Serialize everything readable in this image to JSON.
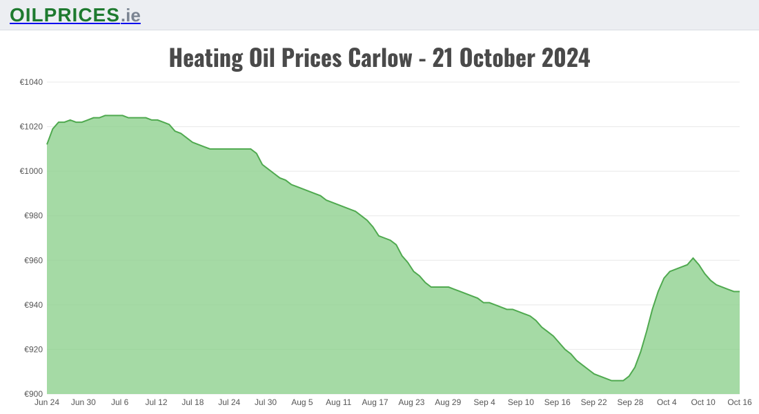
{
  "logo": {
    "main": "OILPRICES",
    "suffix": ".ie"
  },
  "title": "Heating Oil Prices Carlow - 21 October 2024",
  "title_fontsize": 34,
  "chart": {
    "type": "area",
    "background_color": "#ffffff",
    "grid_color": "#e8e8e8",
    "area_fill": "#8cd08c",
    "area_fill_opacity": 0.78,
    "line_color": "#4fa94f",
    "line_width": 2,
    "ylim": [
      900,
      1040
    ],
    "ytick_step": 20,
    "y_prefix": "€",
    "y_ticks": [
      900,
      920,
      940,
      960,
      980,
      1000,
      1020,
      1040
    ],
    "x_labels": [
      "Jun 24",
      "Jun 30",
      "Jul 6",
      "Jul 12",
      "Jul 18",
      "Jul 24",
      "Jul 30",
      "Aug 5",
      "Aug 11",
      "Aug 17",
      "Aug 23",
      "Aug 29",
      "Sep 4",
      "Sep 10",
      "Sep 16",
      "Sep 22",
      "Sep 28",
      "Oct 4",
      "Oct 10",
      "Oct 16"
    ],
    "values": [
      1012,
      1019,
      1022,
      1022,
      1023,
      1022,
      1022,
      1023,
      1024,
      1024,
      1025,
      1025,
      1025,
      1025,
      1024,
      1024,
      1024,
      1024,
      1023,
      1023,
      1022,
      1021,
      1018,
      1017,
      1015,
      1013,
      1012,
      1011,
      1010,
      1010,
      1010,
      1010,
      1010,
      1010,
      1010,
      1010,
      1008,
      1003,
      1001,
      999,
      997,
      996,
      994,
      993,
      992,
      991,
      990,
      989,
      987,
      986,
      985,
      984,
      983,
      982,
      980,
      978,
      975,
      971,
      970,
      969,
      967,
      962,
      959,
      955,
      953,
      950,
      948,
      948,
      948,
      948,
      947,
      946,
      945,
      944,
      943,
      941,
      941,
      940,
      939,
      938,
      938,
      937,
      936,
      935,
      933,
      930,
      928,
      926,
      923,
      920,
      918,
      915,
      913,
      911,
      909,
      908,
      907,
      906,
      906,
      906,
      908,
      912,
      919,
      928,
      938,
      946,
      952,
      955,
      956,
      957,
      958,
      961,
      958,
      954,
      951,
      949,
      948,
      947,
      946,
      946
    ],
    "axis_font_size": 12,
    "axis_text_color": "#555555"
  }
}
